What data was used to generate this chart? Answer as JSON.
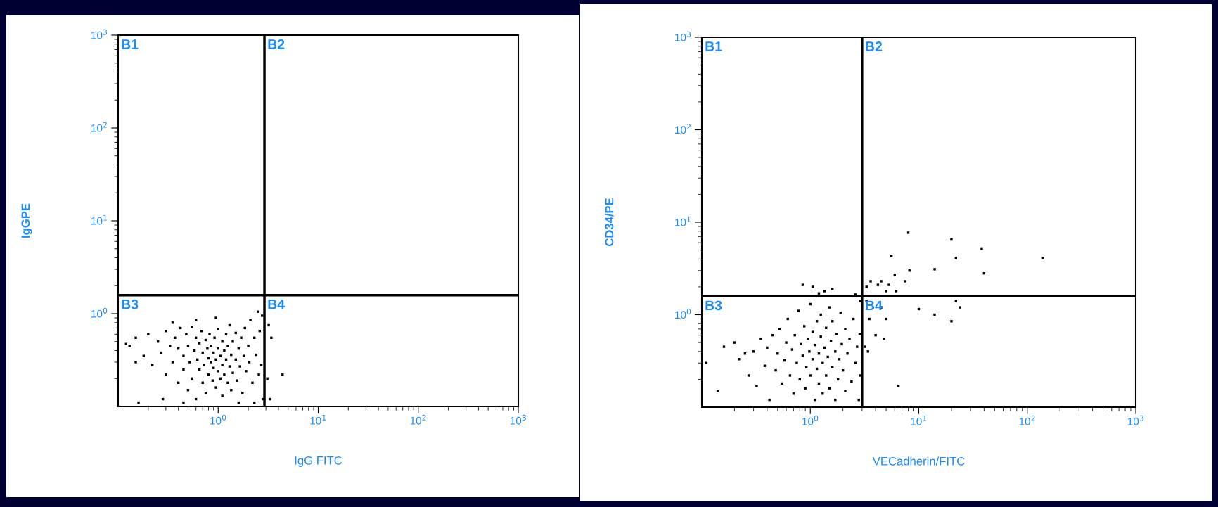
{
  "chart_data": [
    {
      "type": "scatter",
      "xlabel": "IgG FITC",
      "ylabel": "IgGPE",
      "log": "xy",
      "xlim": [
        0.1,
        1000
      ],
      "ylim": [
        0.1,
        1000
      ],
      "xticks": [
        {
          "value": 1,
          "label": "10$^{0}$"
        },
        {
          "value": 10,
          "label": "10$^{1}$"
        },
        {
          "value": 100,
          "label": "10$^{2}$"
        },
        {
          "value": 1000,
          "label": "10$^{3}$"
        }
      ],
      "yticks": [
        {
          "value": 1,
          "label": "10$^{0}$"
        },
        {
          "value": 10,
          "label": "10$^{1}$"
        },
        {
          "value": 100,
          "label": "10$^{2}$"
        },
        {
          "value": 1000,
          "label": "10$^{3}$"
        }
      ],
      "grid": false,
      "legend": false,
      "marker": "square",
      "ref_lines": [
        {
          "axis": "x",
          "value": 2.9,
          "color": "#000000"
        },
        {
          "axis": "y",
          "value": 1.58,
          "color": "#000000"
        }
      ],
      "annotations": [
        "B1",
        "B2",
        "B3",
        "B4"
      ],
      "series": [
        {
          "color": "#000000",
          "x": [
            0.13,
            0.15,
            0.12,
            0.18,
            0.2,
            0.22,
            0.25,
            0.27,
            0.3,
            0.3,
            0.33,
            0.35,
            0.37,
            0.4,
            0.4,
            0.42,
            0.45,
            0.45,
            0.48,
            0.5,
            0.5,
            0.52,
            0.55,
            0.55,
            0.58,
            0.6,
            0.6,
            0.62,
            0.65,
            0.65,
            0.68,
            0.7,
            0.7,
            0.72,
            0.75,
            0.75,
            0.78,
            0.8,
            0.8,
            0.82,
            0.85,
            0.85,
            0.88,
            0.9,
            0.9,
            0.92,
            0.95,
            0.95,
            1.0,
            1.0,
            1.0,
            1.05,
            1.05,
            1.1,
            1.1,
            1.1,
            1.15,
            1.15,
            1.2,
            1.2,
            1.25,
            1.25,
            1.3,
            1.3,
            1.35,
            1.35,
            1.4,
            1.4,
            1.5,
            1.5,
            1.55,
            1.6,
            1.65,
            1.7,
            1.75,
            1.8,
            1.85,
            1.9,
            2.0,
            2.05,
            2.1,
            2.2,
            2.3,
            2.4,
            2.5,
            2.55,
            2.6,
            2.7,
            2.75,
            2.8,
            0.95,
            0.6,
            0.35,
            0.28,
            0.16,
            0.45,
            1.6,
            2.3,
            0.15,
            3.2,
            3.4,
            4.4,
            3.1,
            3.3
          ],
          "values": [
            0.45,
            0.3,
            0.47,
            0.35,
            0.6,
            0.28,
            0.5,
            0.38,
            0.65,
            0.22,
            0.45,
            0.3,
            0.55,
            0.18,
            0.42,
            0.7,
            0.35,
            0.25,
            0.6,
            0.15,
            0.45,
            0.3,
            0.72,
            0.2,
            0.4,
            0.12,
            0.55,
            0.32,
            0.25,
            0.48,
            0.65,
            0.18,
            0.38,
            0.28,
            0.52,
            0.14,
            0.42,
            0.22,
            0.33,
            0.6,
            0.3,
            0.45,
            0.19,
            0.38,
            0.26,
            0.55,
            0.32,
            0.16,
            0.42,
            0.24,
            0.68,
            0.35,
            0.2,
            0.5,
            0.28,
            0.13,
            0.4,
            0.22,
            0.6,
            0.32,
            0.18,
            0.45,
            0.27,
            0.75,
            0.36,
            0.15,
            0.5,
            0.23,
            0.32,
            0.62,
            0.19,
            0.42,
            0.27,
            0.55,
            0.14,
            0.35,
            0.7,
            0.24,
            0.45,
            0.3,
            0.85,
            0.18,
            0.55,
            0.36,
            1.05,
            0.22,
            0.65,
            0.28,
            0.95,
            0.12,
            0.9,
            0.85,
            0.8,
            0.12,
            0.11,
            0.11,
            0.11,
            0.11,
            0.55,
            0.75,
            0.55,
            0.22,
            0.2,
            0.12
          ]
        }
      ]
    },
    {
      "type": "scatter",
      "xlabel": "VECadherin/FITC",
      "ylabel": "CD34/PE",
      "log": "xy",
      "xlim": [
        0.1,
        1000
      ],
      "ylim": [
        0.1,
        1000
      ],
      "xticks": [
        {
          "value": 1,
          "label": "10$^{0}$"
        },
        {
          "value": 10,
          "label": "10$^{1}$"
        },
        {
          "value": 100,
          "label": "10$^{2}$"
        },
        {
          "value": 1000,
          "label": "10$^{3}$"
        }
      ],
      "yticks": [
        {
          "value": 1,
          "label": "10$^{0}$"
        },
        {
          "value": 10,
          "label": "10$^{1}$"
        },
        {
          "value": 100,
          "label": "10$^{2}$"
        },
        {
          "value": 1000,
          "label": "10$^{3}$"
        }
      ],
      "grid": false,
      "legend": false,
      "marker": "square",
      "ref_lines": [
        {
          "axis": "x",
          "value": 3.0,
          "color": "#000000"
        },
        {
          "axis": "y",
          "value": 1.58,
          "color": "#000000"
        }
      ],
      "annotations": [
        "B1",
        "B2",
        "B3",
        "B4"
      ],
      "series": [
        {
          "color": "#000000",
          "x": [
            0.11,
            0.14,
            0.16,
            0.2,
            0.22,
            0.25,
            0.27,
            0.3,
            0.32,
            0.35,
            0.38,
            0.4,
            0.42,
            0.45,
            0.48,
            0.5,
            0.52,
            0.55,
            0.58,
            0.6,
            0.62,
            0.65,
            0.68,
            0.7,
            0.72,
            0.75,
            0.78,
            0.8,
            0.82,
            0.85,
            0.88,
            0.9,
            0.92,
            0.95,
            0.98,
            1.0,
            1.0,
            1.05,
            1.05,
            1.1,
            1.1,
            1.15,
            1.15,
            1.2,
            1.2,
            1.25,
            1.25,
            1.3,
            1.3,
            1.35,
            1.4,
            1.4,
            1.45,
            1.5,
            1.5,
            1.55,
            1.6,
            1.6,
            1.7,
            1.7,
            1.75,
            1.8,
            1.85,
            1.9,
            1.95,
            2.0,
            2.1,
            2.1,
            2.2,
            2.3,
            2.4,
            2.5,
            2.6,
            2.7,
            2.8,
            2.85,
            2.9,
            2.9,
            0.85,
            1.05,
            1.35,
            1.6,
            2.6,
            1.2,
            3.3,
            3.6,
            4.2,
            4.5,
            5.0,
            5.3,
            5.6,
            6.0,
            6.2,
            7.5,
            8.0,
            8.2,
            14,
            20,
            22,
            38,
            40,
            140,
            3.3,
            3.5,
            4.5,
            5.0,
            4.8,
            3.2,
            3.4,
            6.5,
            4.0,
            10,
            14,
            22,
            24,
            20
          ],
          "values": [
            0.3,
            0.15,
            0.45,
            0.5,
            0.33,
            0.38,
            0.22,
            0.4,
            0.17,
            0.55,
            0.28,
            0.44,
            0.12,
            0.6,
            0.25,
            0.38,
            0.7,
            0.18,
            0.32,
            0.5,
            0.9,
            0.22,
            0.42,
            0.14,
            0.6,
            0.3,
            1.1,
            0.2,
            0.48,
            0.36,
            0.75,
            0.16,
            0.27,
            0.55,
            0.4,
            1.3,
            0.22,
            0.65,
            0.33,
            0.12,
            0.47,
            0.85,
            0.26,
            0.38,
            0.18,
            0.58,
            1.0,
            0.3,
            0.14,
            0.44,
            0.72,
            0.22,
            0.35,
            1.2,
            0.16,
            0.52,
            0.27,
            0.85,
            0.4,
            0.12,
            0.62,
            0.2,
            0.33,
            1.05,
            0.48,
            0.25,
            0.7,
            0.15,
            0.38,
            0.55,
            0.19,
            0.9,
            0.3,
            0.45,
            0.12,
            0.62,
            1.4,
            0.22,
            2.1,
            2.0,
            1.8,
            1.9,
            1.65,
            1.7,
            2.0,
            2.3,
            2.1,
            2.3,
            1.8,
            2.1,
            4.3,
            2.7,
            1.8,
            2.3,
            7.7,
            3.0,
            3.1,
            6.5,
            4.1,
            5.2,
            2.8,
            4.1,
            1.4,
            0.9,
            1.2,
            0.9,
            0.55,
            0.45,
            0.4,
            0.17,
            0.6,
            1.15,
            1.0,
            1.4,
            1.2,
            0.85
          ]
        }
      ]
    }
  ]
}
